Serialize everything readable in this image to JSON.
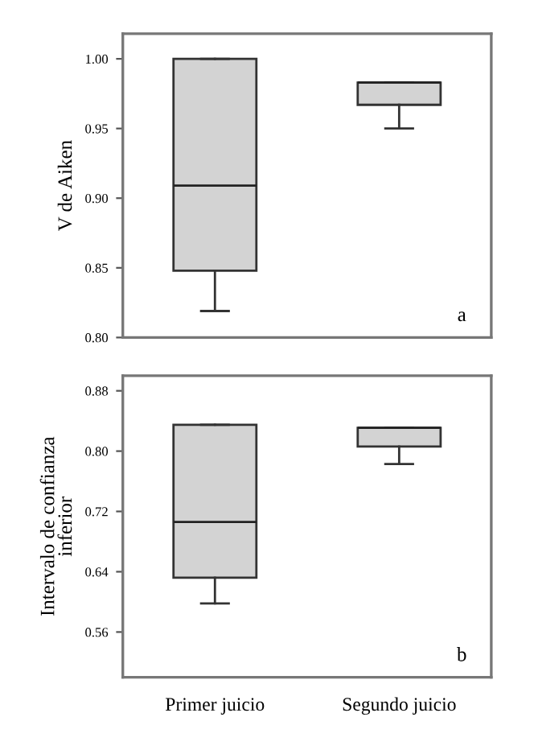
{
  "chart_data": [
    {
      "type": "box",
      "ylabel": "V de Aiken",
      "categories": [
        null,
        null
      ],
      "tick_labels": "y",
      "ylim": [
        0.8,
        1.018
      ],
      "yticks": [
        {
          "value": 0.8,
          "label": "0.80"
        },
        {
          "value": 0.85,
          "label": "0.85"
        },
        {
          "value": 0.9,
          "label": "0.90"
        },
        {
          "value": 0.95,
          "label": "0.95"
        },
        {
          "value": 1.0,
          "label": "1.00"
        }
      ],
      "grid": false,
      "annotations": [
        "a"
      ],
      "color": "#d3d3d3",
      "boxes": [
        {
          "low": 0.819,
          "q1": 0.848,
          "median": 0.909,
          "q3": 1.0,
          "high": 1.0
        },
        {
          "low": 0.95,
          "q1": 0.967,
          "median": 0.983,
          "q3": 0.983,
          "high": 0.983
        }
      ]
    },
    {
      "type": "box",
      "ylabel": "Intervalo de confianza inferior",
      "categories": [
        "Primer juicio",
        "Segundo juicio"
      ],
      "ylim": [
        0.5,
        0.9
      ],
      "yticks": [
        {
          "value": 0.56,
          "label": "0.56"
        },
        {
          "value": 0.64,
          "label": "0.64"
        },
        {
          "value": 0.72,
          "label": "0.72"
        },
        {
          "value": 0.8,
          "label": "0.80"
        },
        {
          "value": 0.88,
          "label": "0.88"
        }
      ],
      "grid": false,
      "annotations": [
        "b"
      ],
      "color": "#d3d3d3",
      "boxes": [
        {
          "low": 0.598,
          "q1": 0.632,
          "median": 0.706,
          "q3": 0.835,
          "high": 0.835
        },
        {
          "low": 0.783,
          "q1": 0.806,
          "median": 0.831,
          "q3": 0.831,
          "high": 0.831
        }
      ]
    }
  ]
}
